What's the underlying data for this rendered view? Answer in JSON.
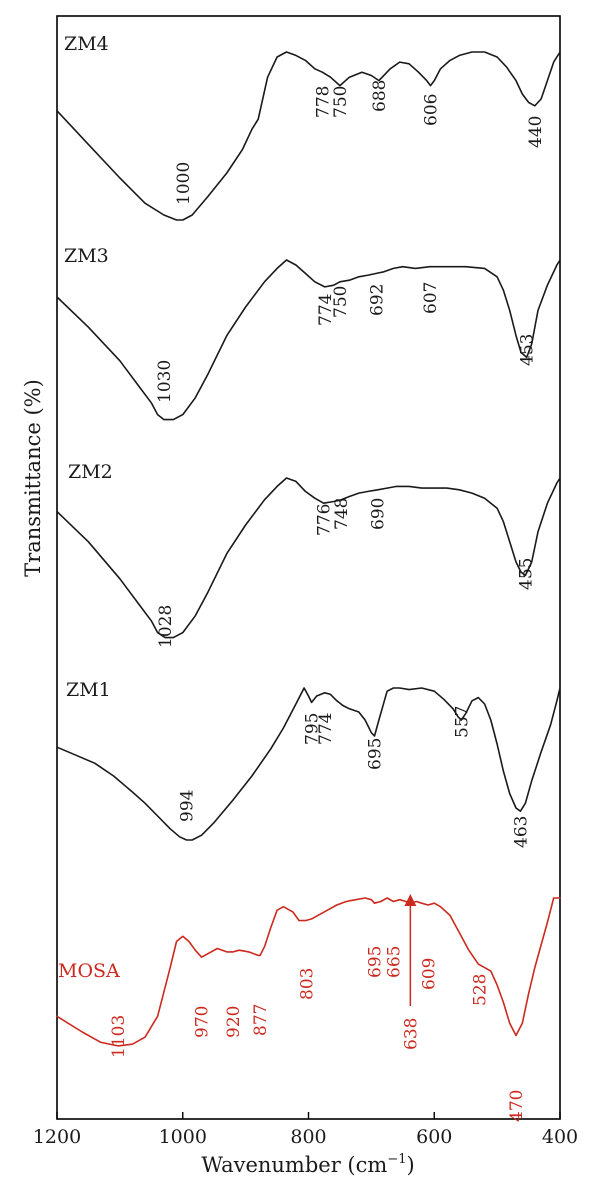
{
  "chart_data": {
    "type": "line",
    "xlabel": "Wavenumber (cm",
    "xlabel_sup": "−1",
    "xlabel_suffix": ")",
    "ylabel": "Transmittance (%)",
    "xlim": [
      1200,
      400
    ],
    "x_reversed": true,
    "y_ticks_shown": false,
    "grid": false,
    "x_ticks": [
      "1200",
      "1000",
      "800",
      "600",
      "400"
    ],
    "colors": {
      "default": "#1a1a1a",
      "mosa": "#cc2a1f"
    },
    "series": [
      {
        "name": "ZM4",
        "color_key": "default",
        "x": [
          1200,
          1150,
          1100,
          1060,
          1030,
          1010,
          1000,
          985,
          960,
          930,
          905,
          890,
          880,
          865,
          850,
          835,
          820,
          805,
          790,
          778,
          765,
          750,
          735,
          715,
          700,
          688,
          670,
          655,
          640,
          625,
          612,
          606,
          600,
          590,
          575,
          560,
          540,
          520,
          500,
          485,
          470,
          460,
          450,
          440,
          430,
          420,
          410,
          400
        ],
        "y": [
          0.35,
          0.55,
          0.75,
          0.9,
          0.97,
          1.0,
          1.0,
          0.97,
          0.86,
          0.72,
          0.58,
          0.46,
          0.4,
          0.15,
          0.03,
          0.0,
          0.02,
          0.05,
          0.1,
          0.12,
          0.15,
          0.2,
          0.15,
          0.12,
          0.14,
          0.17,
          0.1,
          0.06,
          0.07,
          0.12,
          0.17,
          0.2,
          0.17,
          0.1,
          0.05,
          0.02,
          0.0,
          0.0,
          0.03,
          0.09,
          0.17,
          0.25,
          0.3,
          0.32,
          0.28,
          0.17,
          0.06,
          0.0
        ]
      },
      {
        "name": "ZM3",
        "color_key": "default",
        "x": [
          1200,
          1150,
          1100,
          1070,
          1050,
          1040,
          1030,
          1015,
          1000,
          980,
          960,
          930,
          900,
          870,
          850,
          835,
          820,
          805,
          790,
          774,
          760,
          750,
          735,
          720,
          705,
          692,
          680,
          665,
          650,
          630,
          607,
          590,
          570,
          550,
          520,
          500,
          490,
          480,
          470,
          462,
          453,
          445,
          435,
          420,
          405,
          400
        ],
        "y": [
          0.22,
          0.4,
          0.6,
          0.75,
          0.85,
          0.92,
          0.95,
          0.95,
          0.92,
          0.82,
          0.68,
          0.45,
          0.28,
          0.13,
          0.05,
          0.0,
          0.03,
          0.08,
          0.13,
          0.16,
          0.15,
          0.13,
          0.12,
          0.1,
          0.09,
          0.08,
          0.07,
          0.05,
          0.04,
          0.05,
          0.04,
          0.04,
          0.04,
          0.04,
          0.05,
          0.1,
          0.18,
          0.3,
          0.45,
          0.55,
          0.58,
          0.5,
          0.3,
          0.15,
          0.03,
          0.0
        ]
      },
      {
        "name": "ZM2",
        "color_key": "default",
        "x": [
          1200,
          1150,
          1100,
          1070,
          1050,
          1040,
          1028,
          1015,
          1000,
          980,
          960,
          930,
          900,
          870,
          850,
          835,
          820,
          805,
          790,
          776,
          760,
          748,
          735,
          720,
          705,
          690,
          675,
          660,
          640,
          620,
          600,
          580,
          560,
          540,
          520,
          500,
          490,
          480,
          470,
          462,
          455,
          445,
          435,
          420,
          405,
          400
        ],
        "y": [
          0.2,
          0.38,
          0.6,
          0.75,
          0.85,
          0.92,
          0.95,
          0.95,
          0.92,
          0.82,
          0.68,
          0.45,
          0.28,
          0.13,
          0.05,
          0.0,
          0.02,
          0.08,
          0.12,
          0.15,
          0.14,
          0.13,
          0.11,
          0.09,
          0.08,
          0.07,
          0.06,
          0.05,
          0.05,
          0.06,
          0.06,
          0.06,
          0.07,
          0.09,
          0.12,
          0.18,
          0.26,
          0.38,
          0.5,
          0.56,
          0.58,
          0.5,
          0.32,
          0.15,
          0.03,
          0.0
        ]
      },
      {
        "name": "ZM1",
        "color_key": "default",
        "x": [
          1200,
          1170,
          1140,
          1110,
          1080,
          1060,
          1040,
          1020,
          1005,
          994,
          985,
          970,
          950,
          920,
          890,
          860,
          840,
          820,
          807,
          800,
          795,
          787,
          774,
          765,
          755,
          745,
          735,
          720,
          710,
          700,
          695,
          688,
          675,
          665,
          655,
          640,
          620,
          600,
          585,
          570,
          562,
          557,
          550,
          540,
          530,
          520,
          510,
          500,
          490,
          480,
          470,
          463,
          455,
          445,
          430,
          415,
          405,
          400
        ],
        "y": [
          0.37,
          0.42,
          0.47,
          0.55,
          0.65,
          0.72,
          0.8,
          0.88,
          0.93,
          0.95,
          0.95,
          0.92,
          0.84,
          0.7,
          0.55,
          0.38,
          0.25,
          0.1,
          0.0,
          0.05,
          0.09,
          0.05,
          0.03,
          0.04,
          0.08,
          0.11,
          0.13,
          0.15,
          0.2,
          0.28,
          0.3,
          0.2,
          0.02,
          0.0,
          0.0,
          0.01,
          0.0,
          0.02,
          0.07,
          0.13,
          0.18,
          0.2,
          0.16,
          0.08,
          0.06,
          0.1,
          0.2,
          0.35,
          0.52,
          0.66,
          0.75,
          0.77,
          0.72,
          0.58,
          0.4,
          0.23,
          0.08,
          0.0
        ]
      },
      {
        "name": "MOSA",
        "color_key": "mosa",
        "x": [
          1200,
          1160,
          1130,
          1103,
          1080,
          1060,
          1040,
          1020,
          1010,
          1000,
          990,
          980,
          970,
          960,
          945,
          930,
          920,
          910,
          895,
          880,
          877,
          870,
          860,
          850,
          840,
          825,
          815,
          805,
          795,
          785,
          770,
          755,
          740,
          725,
          710,
          700,
          695,
          685,
          675,
          665,
          655,
          645,
          638,
          628,
          620,
          610,
          600,
          590,
          575,
          560,
          545,
          530,
          520,
          510,
          500,
          490,
          480,
          470,
          460,
          450,
          440,
          430,
          420,
          410,
          400
        ],
        "y": [
          0.68,
          0.77,
          0.83,
          0.85,
          0.84,
          0.8,
          0.68,
          0.4,
          0.25,
          0.22,
          0.25,
          0.3,
          0.34,
          0.32,
          0.29,
          0.31,
          0.31,
          0.3,
          0.31,
          0.33,
          0.33,
          0.28,
          0.17,
          0.07,
          0.05,
          0.08,
          0.13,
          0.13,
          0.12,
          0.1,
          0.07,
          0.04,
          0.02,
          0.01,
          0.0,
          0.01,
          0.03,
          0.02,
          0.0,
          0.02,
          0.01,
          0.02,
          0.03,
          0.02,
          0.03,
          0.04,
          0.03,
          0.05,
          0.1,
          0.2,
          0.3,
          0.38,
          0.4,
          0.42,
          0.5,
          0.6,
          0.72,
          0.79,
          0.72,
          0.55,
          0.4,
          0.27,
          0.14,
          0.0,
          0.0
        ]
      }
    ],
    "peak_labels": [
      {
        "series": "ZM4",
        "text": "1000",
        "x": 1000
      },
      {
        "series": "ZM4",
        "text": "778",
        "x": 778
      },
      {
        "series": "ZM4",
        "text": "750",
        "x": 750
      },
      {
        "series": "ZM4",
        "text": "688",
        "x": 688
      },
      {
        "series": "ZM4",
        "text": "606",
        "x": 606
      },
      {
        "series": "ZM4",
        "text": "440",
        "x": 440
      },
      {
        "series": "ZM3",
        "text": "1030",
        "x": 1030
      },
      {
        "series": "ZM3",
        "text": "774",
        "x": 774
      },
      {
        "series": "ZM3",
        "text": "750",
        "x": 750
      },
      {
        "series": "ZM3",
        "text": "692",
        "x": 692
      },
      {
        "series": "ZM3",
        "text": "607",
        "x": 607
      },
      {
        "series": "ZM3",
        "text": "453",
        "x": 453
      },
      {
        "series": "ZM2",
        "text": "1028",
        "x": 1028
      },
      {
        "series": "ZM2",
        "text": "776",
        "x": 776
      },
      {
        "series": "ZM2",
        "text": "748",
        "x": 748
      },
      {
        "series": "ZM2",
        "text": "690",
        "x": 690
      },
      {
        "series": "ZM2",
        "text": "455",
        "x": 455
      },
      {
        "series": "ZM1",
        "text": "994",
        "x": 994
      },
      {
        "series": "ZM1",
        "text": "795",
        "x": 795
      },
      {
        "series": "ZM1",
        "text": "774",
        "x": 774
      },
      {
        "series": "ZM1",
        "text": "695",
        "x": 695
      },
      {
        "series": "ZM1",
        "text": "557",
        "x": 557
      },
      {
        "series": "ZM1",
        "text": "463",
        "x": 463
      },
      {
        "series": "MOSA",
        "text": "1103",
        "x": 1103
      },
      {
        "series": "MOSA",
        "text": "970",
        "x": 970
      },
      {
        "series": "MOSA",
        "text": "920",
        "x": 920
      },
      {
        "series": "MOSA",
        "text": "877",
        "x": 877
      },
      {
        "series": "MOSA",
        "text": "803",
        "x": 803
      },
      {
        "series": "MOSA",
        "text": "695",
        "x": 695
      },
      {
        "series": "MOSA",
        "text": "665",
        "x": 665
      },
      {
        "series": "MOSA",
        "text": "638",
        "x": 638,
        "arrow": true
      },
      {
        "series": "MOSA",
        "text": "609",
        "x": 609
      },
      {
        "series": "MOSA",
        "text": "528",
        "x": 528
      },
      {
        "series": "MOSA",
        "text": "470",
        "x": 470
      }
    ]
  }
}
